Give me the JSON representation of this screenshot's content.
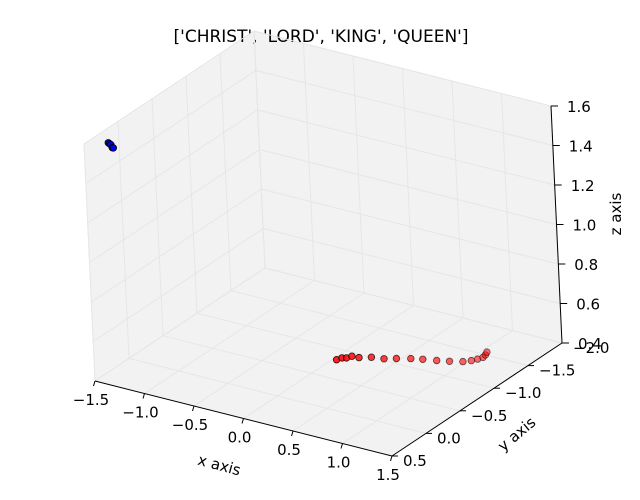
{
  "chart_data": {
    "type": "scatter",
    "title": "['CHRIST', 'LORD', 'KING', 'QUEEN']",
    "xlabel": "x axis",
    "ylabel": "y axis",
    "zlabel": "z axis",
    "xlim": [
      -1.5,
      1.5
    ],
    "ylim": [
      -2.0,
      0.5
    ],
    "zlim": [
      0.4,
      1.6
    ],
    "x_ticks": [
      "−1.5",
      "−1.0",
      "−0.5",
      "0.0",
      "0.5",
      "1.0",
      "1.5"
    ],
    "y_ticks": [
      "−2.0",
      "−1.5",
      "−1.0",
      "−0.5",
      "0.0",
      "0.5"
    ],
    "z_ticks": [
      "0.4",
      "0.6",
      "0.8",
      "1.0",
      "1.2",
      "1.4",
      "1.6"
    ],
    "grid": true,
    "colors": {
      "series_blue": "#0000ff",
      "series_red": "#ff0000",
      "pane": "#f2f2f2",
      "grid": "#e6e6e6"
    },
    "series": [
      {
        "color": "#0000ff",
        "points": [
          {
            "x": -1.38,
            "y": 0.32,
            "z": 1.58
          },
          {
            "x": -1.36,
            "y": 0.33,
            "z": 1.58
          },
          {
            "x": -1.34,
            "y": 0.34,
            "z": 1.58
          },
          {
            "x": -1.32,
            "y": 0.35,
            "z": 1.57
          },
          {
            "x": -1.31,
            "y": 0.35,
            "z": 1.57
          }
        ]
      },
      {
        "color": "#ff0000",
        "points": [
          {
            "x": 0.55,
            "y": -0.1,
            "z": 0.63
          },
          {
            "x": 0.57,
            "y": -0.15,
            "z": 0.63
          },
          {
            "x": 0.58,
            "y": -0.2,
            "z": 0.62
          },
          {
            "x": 0.6,
            "y": -0.25,
            "z": 0.62
          },
          {
            "x": 0.6,
            "y": -0.35,
            "z": 0.59
          },
          {
            "x": 0.62,
            "y": -0.5,
            "z": 0.56
          },
          {
            "x": 0.64,
            "y": -0.65,
            "z": 0.52
          },
          {
            "x": 0.66,
            "y": -0.8,
            "z": 0.49
          },
          {
            "x": 0.7,
            "y": -0.95,
            "z": 0.46
          },
          {
            "x": 0.75,
            "y": -1.05,
            "z": 0.44
          },
          {
            "x": 0.82,
            "y": -1.15,
            "z": 0.42
          },
          {
            "x": 0.9,
            "y": -1.22,
            "z": 0.41
          },
          {
            "x": 0.98,
            "y": -1.3,
            "z": 0.4
          },
          {
            "x": 1.03,
            "y": -1.35,
            "z": 0.4
          },
          {
            "x": 1.06,
            "y": -1.4,
            "z": 0.4
          },
          {
            "x": 1.08,
            "y": -1.45,
            "z": 0.4
          },
          {
            "x": 1.07,
            "y": -1.5,
            "z": 0.4
          },
          {
            "x": 1.05,
            "y": -1.55,
            "z": 0.4
          }
        ]
      }
    ]
  }
}
